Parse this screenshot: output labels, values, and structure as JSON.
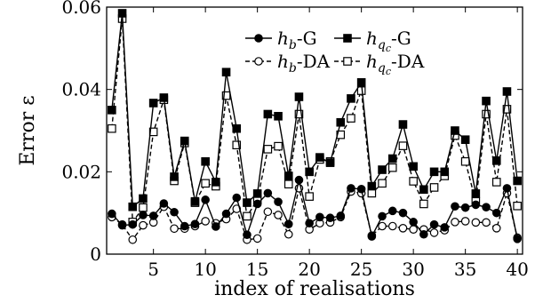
{
  "chart_data": {
    "type": "line",
    "title": "",
    "xlabel": "index of realisations",
    "ylabel": "Error ε",
    "xlim": [
      0.5,
      40.5
    ],
    "ylim": [
      0,
      0.06
    ],
    "xticks": [
      5,
      10,
      15,
      20,
      25,
      30,
      35,
      40
    ],
    "xtick_labels": [
      "5",
      "10",
      "15",
      "20",
      "25",
      "30",
      "35",
      "40"
    ],
    "yticks": [
      0,
      0.02,
      0.04,
      0.06
    ],
    "ytick_labels": [
      "0",
      "0.02",
      "0.04",
      "0.06"
    ],
    "grid": false,
    "legend_position": "top-right",
    "legend_columns": 2,
    "x": [
      1,
      2,
      3,
      4,
      5,
      6,
      7,
      8,
      9,
      10,
      11,
      12,
      13,
      14,
      15,
      16,
      17,
      18,
      19,
      20,
      21,
      22,
      23,
      24,
      25,
      26,
      27,
      28,
      29,
      30,
      31,
      32,
      33,
      34,
      35,
      36,
      37,
      38,
      39,
      40
    ],
    "series": [
      {
        "name": "h_b-G",
        "legend_main": "h",
        "legend_sub": "b",
        "legend_subsub": "",
        "legend_suffix": "-G",
        "line": "solid",
        "marker": "circle",
        "fill": "filled",
        "values": [
          0.0098,
          0.007,
          0.0072,
          0.0095,
          0.0093,
          0.0123,
          0.0102,
          0.0068,
          0.0073,
          0.0132,
          0.0067,
          0.0098,
          0.0137,
          0.0047,
          0.0122,
          0.0148,
          0.0127,
          0.0073,
          0.018,
          0.0075,
          0.009,
          0.0088,
          0.0093,
          0.016,
          0.0158,
          0.0043,
          0.0092,
          0.0105,
          0.01,
          0.0078,
          0.0048,
          0.0072,
          0.0065,
          0.0116,
          0.0113,
          0.012,
          0.0114,
          0.01,
          0.016,
          0.0037
        ]
      },
      {
        "name": "h_qc-G",
        "legend_main": "h",
        "legend_sub": "q",
        "legend_subsub": "c",
        "legend_suffix": "-G",
        "line": "solid",
        "marker": "square",
        "fill": "filled",
        "values": [
          0.035,
          0.0585,
          0.0115,
          0.0135,
          0.0367,
          0.038,
          0.0188,
          0.0275,
          0.0128,
          0.0225,
          0.0175,
          0.0442,
          0.0305,
          0.0125,
          0.0147,
          0.034,
          0.0335,
          0.019,
          0.0382,
          0.02,
          0.0235,
          0.0222,
          0.032,
          0.0378,
          0.0417,
          0.0165,
          0.0205,
          0.0232,
          0.0315,
          0.0213,
          0.0157,
          0.02,
          0.02,
          0.03,
          0.0278,
          0.0147,
          0.0372,
          0.0227,
          0.0395,
          0.0178
        ]
      },
      {
        "name": "h_b-DA",
        "legend_main": "h",
        "legend_sub": "b",
        "legend_subsub": "",
        "legend_suffix": "-DA",
        "line": "dashed",
        "marker": "circle",
        "fill": "open",
        "values": [
          0.009,
          0.0072,
          0.0035,
          0.007,
          0.0077,
          0.0115,
          0.0062,
          0.0062,
          0.0068,
          0.008,
          0.0075,
          0.0085,
          0.011,
          0.0035,
          0.0038,
          0.0103,
          0.0095,
          0.0048,
          0.016,
          0.006,
          0.0075,
          0.0077,
          0.009,
          0.0152,
          0.0148,
          0.0045,
          0.0068,
          0.0068,
          0.0063,
          0.006,
          0.006,
          0.0052,
          0.0058,
          0.0078,
          0.008,
          0.0077,
          0.0077,
          0.0063,
          0.0148,
          0.004
        ]
      },
      {
        "name": "h_qc-DA",
        "legend_main": "h",
        "legend_sub": "q",
        "legend_subsub": "c",
        "legend_suffix": "-DA",
        "line": "dashed",
        "marker": "square",
        "fill": "open",
        "values": [
          0.0305,
          0.0572,
          0.0078,
          0.0113,
          0.0297,
          0.0375,
          0.0178,
          0.027,
          0.0125,
          0.0172,
          0.0165,
          0.0385,
          0.0265,
          0.0092,
          0.0132,
          0.0255,
          0.0262,
          0.017,
          0.034,
          0.014,
          0.023,
          0.0225,
          0.029,
          0.033,
          0.0397,
          0.0148,
          0.0172,
          0.021,
          0.0263,
          0.0177,
          0.0122,
          0.0162,
          0.019,
          0.0288,
          0.0225,
          0.0128,
          0.034,
          0.0175,
          0.0352,
          0.0117
        ]
      }
    ]
  }
}
